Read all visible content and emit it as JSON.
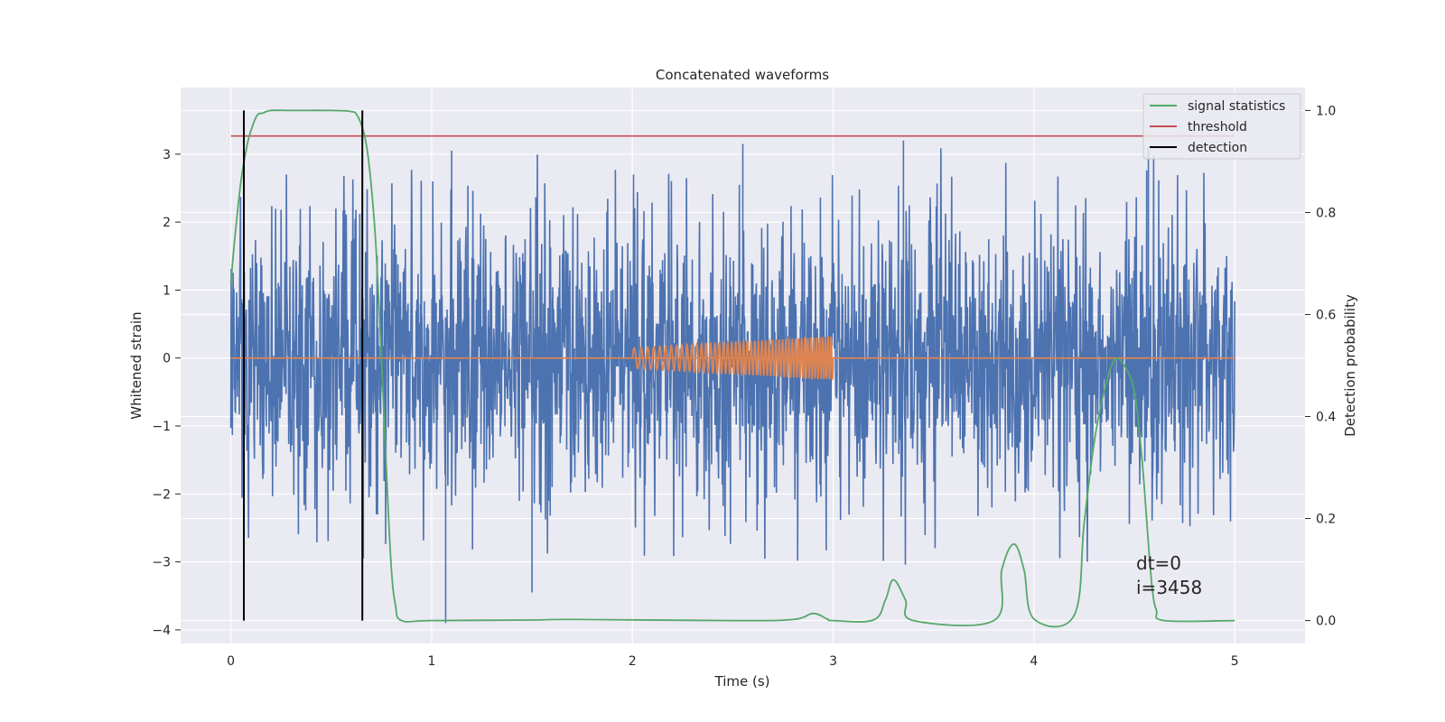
{
  "chart_data": {
    "type": "line",
    "title": "Concatenated waveforms",
    "xlabel": "Time (s)",
    "ylabel": "Whitened strain",
    "y2label": "Detection probability",
    "xlim": [
      -0.25,
      5.35
    ],
    "ylim": [
      -4.2,
      3.98
    ],
    "y2lim": [
      -0.045,
      1.045
    ],
    "xticks": [
      0,
      1,
      2,
      3,
      4,
      5
    ],
    "yticks": [
      -4,
      -3,
      -2,
      -1,
      0,
      1,
      2,
      3
    ],
    "y2ticks": [
      0.0,
      0.2,
      0.4,
      0.6,
      0.8,
      1.0
    ],
    "x_tick_labels": [
      "0",
      "1",
      "2",
      "3",
      "4",
      "5"
    ],
    "y_tick_labels": [
      "−4",
      "−3",
      "−2",
      "−1",
      "0",
      "1",
      "2",
      "3"
    ],
    "y2_tick_labels": [
      "0.0",
      "0.2",
      "0.4",
      "0.6",
      "0.8",
      "1.0"
    ],
    "grid": true,
    "legend_position": "top-right",
    "legend": [
      "signal statistics",
      "threshold",
      "detection"
    ],
    "annotation": {
      "line1": "dt=0",
      "line2": "i=3458",
      "x": 4.5,
      "y": -3.3
    },
    "series": [
      {
        "name": "whitened strain",
        "axis": "left",
        "color": "#4c72b0",
        "kind": "noise",
        "x_range": [
          0,
          5
        ],
        "typical_range": [
          -1.5,
          1.7
        ],
        "max": 3.2,
        "min": -3.9
      },
      {
        "name": "injected chirp",
        "axis": "left",
        "color": "#dd8452",
        "kind": "chirp",
        "x_range": [
          2,
          3
        ],
        "amplitude_start": 0.15,
        "amplitude_end": 0.32,
        "baseline_x_range": [
          0,
          5
        ]
      },
      {
        "name": "signal statistics",
        "axis": "right",
        "color": "#55a868",
        "x": [
          0,
          0.02,
          0.05,
          0.08,
          0.1,
          0.13,
          0.16,
          0.2,
          0.3,
          0.5,
          0.6,
          0.63,
          0.66,
          0.68,
          0.7,
          0.72,
          0.74,
          0.76,
          0.78,
          0.8,
          0.82,
          0.85,
          1.0,
          1.5,
          1.7,
          2.5,
          2.8,
          2.9,
          2.97,
          3.0,
          3.2,
          3.26,
          3.3,
          3.36,
          3.4,
          3.8,
          3.84,
          3.9,
          3.95,
          4.0,
          4.2,
          4.25,
          4.3,
          4.35,
          4.4,
          4.45,
          4.5,
          4.53,
          4.55,
          4.57,
          4.59,
          4.61,
          4.65,
          5.0
        ],
        "y": [
          0.66,
          0.75,
          0.86,
          0.93,
          0.96,
          0.99,
          0.995,
          1.0,
          1.0,
          1.0,
          0.998,
          0.99,
          0.96,
          0.92,
          0.85,
          0.75,
          0.6,
          0.43,
          0.25,
          0.1,
          0.03,
          0.0,
          0.0,
          0.001,
          0.002,
          0.0,
          0.002,
          0.014,
          0.003,
          0.0,
          0.001,
          0.04,
          0.08,
          0.04,
          0.0,
          0.0,
          0.1,
          0.15,
          0.1,
          0.003,
          0.01,
          0.19,
          0.35,
          0.45,
          0.51,
          0.5,
          0.45,
          0.35,
          0.26,
          0.15,
          0.06,
          0.02,
          0.0,
          0.0
        ]
      },
      {
        "name": "threshold",
        "axis": "right",
        "color": "#c44e52",
        "x": [
          0,
          5
        ],
        "y": [
          0.95,
          0.95
        ]
      },
      {
        "name": "detection",
        "axis": "right",
        "color": "#000000",
        "vlines": [
          0.065,
          0.655
        ],
        "y_range": [
          0.0,
          1.0
        ]
      }
    ]
  }
}
